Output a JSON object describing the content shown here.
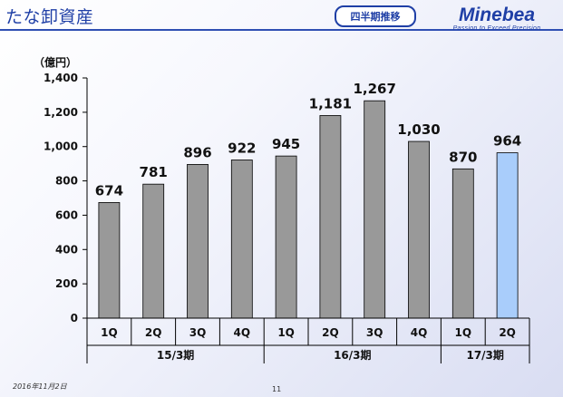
{
  "header": {
    "title": "たな卸資産",
    "badge": "四半期推移",
    "logo_name": "Minebea",
    "logo_tagline": "Passion to Exceed Precision"
  },
  "footer": {
    "date": "2016年11月2日",
    "page": "11"
  },
  "colors": {
    "bar": "#999999",
    "bar_highlight": "#a9cdfb",
    "brand": "#1f3fa6"
  },
  "chart_data": {
    "type": "bar",
    "unit_label": "（億円）",
    "categories": [
      "1Q",
      "2Q",
      "3Q",
      "4Q",
      "1Q",
      "2Q",
      "3Q",
      "4Q",
      "1Q",
      "2Q"
    ],
    "values": [
      674,
      781,
      896,
      922,
      945,
      1181,
      1267,
      1030,
      870,
      964
    ],
    "value_labels": [
      "674",
      "781",
      "896",
      "922",
      "945",
      "1,181",
      "1,267",
      "1,030",
      "870",
      "964"
    ],
    "highlight_index": 9,
    "groups": [
      {
        "label": "15/3期",
        "start": 0,
        "end": 3
      },
      {
        "label": "16/3期",
        "start": 4,
        "end": 7
      },
      {
        "label": "17/3期",
        "start": 8,
        "end": 9
      }
    ],
    "ylim": [
      0,
      1400
    ],
    "yticks": [
      0,
      200,
      400,
      600,
      800,
      1000,
      1200,
      1400
    ],
    "ytick_labels": [
      "0",
      "200",
      "400",
      "600",
      "800",
      "1,000",
      "1,200",
      "1,400"
    ],
    "grid": false
  }
}
